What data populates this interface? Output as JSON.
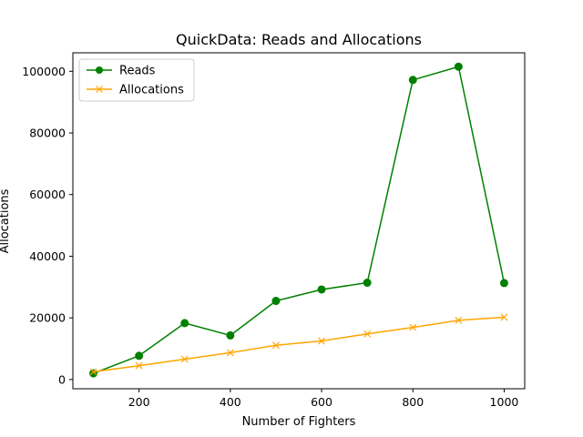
{
  "chart_data": {
    "type": "line",
    "title": "QuickData: Reads and Allocations",
    "xlabel": "Number of Fighters",
    "ylabel": "Allocations",
    "x": [
      100,
      200,
      300,
      400,
      500,
      600,
      700,
      800,
      900,
      1000
    ],
    "xlim": [
      55,
      1045
    ],
    "ylim": [
      -3000,
      106000
    ],
    "xticks": [
      200,
      400,
      600,
      800,
      1000
    ],
    "xtick_labels": [
      "200",
      "400",
      "600",
      "800",
      "1000"
    ],
    "yticks": [
      0,
      20000,
      40000,
      60000,
      80000,
      100000
    ],
    "ytick_labels": [
      "0",
      "20000",
      "40000",
      "60000",
      "80000",
      "100000"
    ],
    "grid": false,
    "legend_position": "upper left",
    "series": [
      {
        "name": "Reads",
        "marker": "circle",
        "color": "#008000",
        "values": [
          2000,
          7700,
          18300,
          14300,
          25500,
          29200,
          31400,
          97200,
          101500,
          31300
        ]
      },
      {
        "name": "Allocations",
        "marker": "x",
        "color": "#ffa500",
        "values": [
          2500,
          4500,
          6600,
          8700,
          11100,
          12500,
          14800,
          16900,
          19200,
          20200
        ]
      }
    ]
  }
}
